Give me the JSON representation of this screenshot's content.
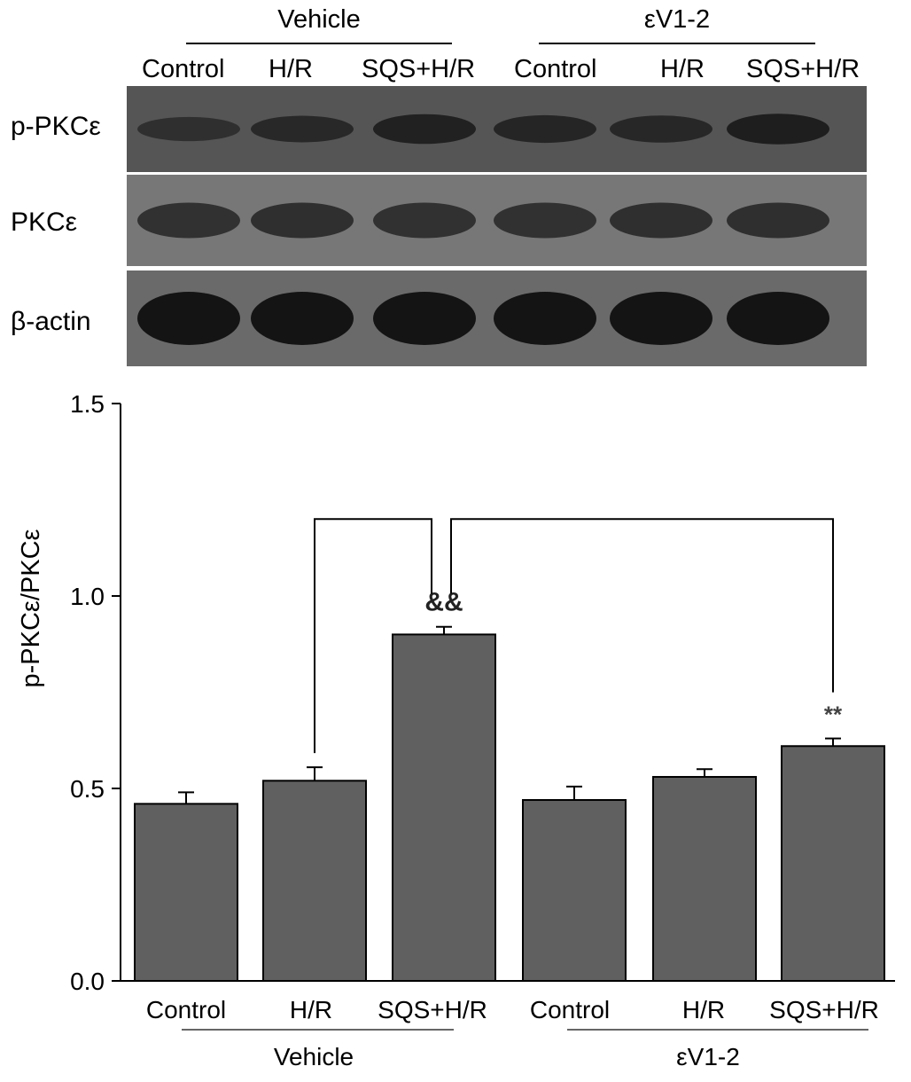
{
  "blot": {
    "top_groups": [
      {
        "label": "Vehicle"
      },
      {
        "label": "εV1-2"
      }
    ],
    "lanes": [
      "Control",
      "H/R",
      "SQS+H/R",
      "Control",
      "H/R",
      "SQS+H/R"
    ],
    "rows": [
      {
        "label": "p-PKCε",
        "bands": [
          0.45,
          0.62,
          0.85,
          0.7,
          0.66,
          0.9
        ],
        "bg": "#555555",
        "band_color": "#181818"
      },
      {
        "label": "PKCε",
        "bands": [
          0.8,
          0.85,
          0.82,
          0.8,
          0.85,
          0.84
        ],
        "bg": "#777777",
        "band_color": "#232323"
      },
      {
        "label": "β-actin",
        "bands": [
          1.0,
          1.0,
          1.0,
          1.0,
          1.0,
          1.0
        ],
        "bg": "#6a6a6a",
        "band_color": "#101010"
      }
    ]
  },
  "chart_data": {
    "type": "bar",
    "ylabel": "p-PKCε/PKCε",
    "ylim": [
      0,
      1.5
    ],
    "yticks": [
      "0.0",
      "0.5",
      "1.0",
      "1.5"
    ],
    "categories": [
      "Control",
      "H/R",
      "SQS+H/R",
      "Control",
      "H/R",
      "SQS+H/R"
    ],
    "values": [
      0.46,
      0.52,
      0.9,
      0.47,
      0.53,
      0.61
    ],
    "errors": [
      0.03,
      0.035,
      0.02,
      0.035,
      0.02,
      0.02
    ],
    "groups": [
      {
        "label": "Vehicle",
        "categories": [
          0,
          1,
          2
        ]
      },
      {
        "label": "εV1-2",
        "categories": [
          3,
          4,
          5
        ]
      }
    ],
    "annotations": [
      {
        "bar": 2,
        "text": "&&"
      },
      {
        "bar": 5,
        "text": "**"
      }
    ],
    "brackets": [
      {
        "from": 1,
        "to": 2
      },
      {
        "from": 2,
        "to": 5
      }
    ],
    "bar_color": "#606060"
  }
}
